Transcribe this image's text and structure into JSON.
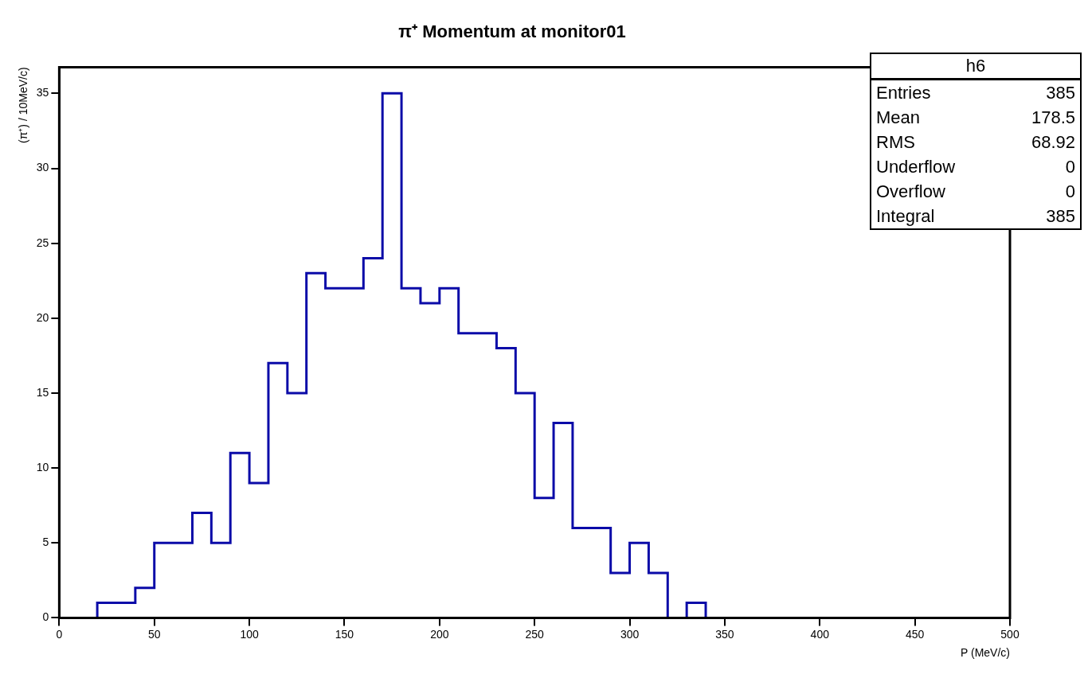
{
  "chart_data": {
    "type": "histogram",
    "title": "π⁺ Momentum at monitor01",
    "xlabel": "P (MeV/c)",
    "ylabel": "(π⁺) / 10MeV/c)",
    "bins": [
      0,
      10,
      20,
      30,
      40,
      50,
      60,
      70,
      80,
      90,
      100,
      110,
      120,
      130,
      140,
      150,
      160,
      170,
      180,
      190,
      200,
      210,
      220,
      230,
      240,
      250,
      260,
      270,
      280,
      290,
      300,
      310,
      320,
      330,
      340,
      350,
      360,
      370,
      380,
      390,
      400,
      410,
      420,
      430,
      440,
      450,
      460,
      470,
      480,
      490,
      500
    ],
    "values": [
      0,
      0,
      1,
      1,
      2,
      5,
      5,
      7,
      5,
      11,
      9,
      17,
      15,
      23,
      22,
      22,
      24,
      35,
      22,
      21,
      22,
      19,
      19,
      18,
      15,
      8,
      13,
      6,
      6,
      3,
      5,
      3,
      0,
      1,
      0,
      0,
      0,
      0,
      0,
      0,
      0,
      0,
      0,
      0,
      0,
      0,
      0,
      0,
      0,
      0
    ],
    "color": "#0b0ba8",
    "xlim": [
      0,
      500
    ],
    "xticks": [
      0,
      50,
      100,
      150,
      200,
      250,
      300,
      350,
      400,
      450,
      500
    ],
    "ylim": [
      0,
      36.75
    ],
    "yticks": [
      0,
      5,
      10,
      15,
      20,
      25,
      30,
      35
    ],
    "grid": false,
    "legend": false,
    "annotations": [
      "h6",
      "Entries",
      "385",
      "Mean",
      "178.5",
      "RMS",
      "68.92",
      "Underflow",
      "0",
      "Overflow",
      "0",
      "Integral",
      "385"
    ]
  }
}
